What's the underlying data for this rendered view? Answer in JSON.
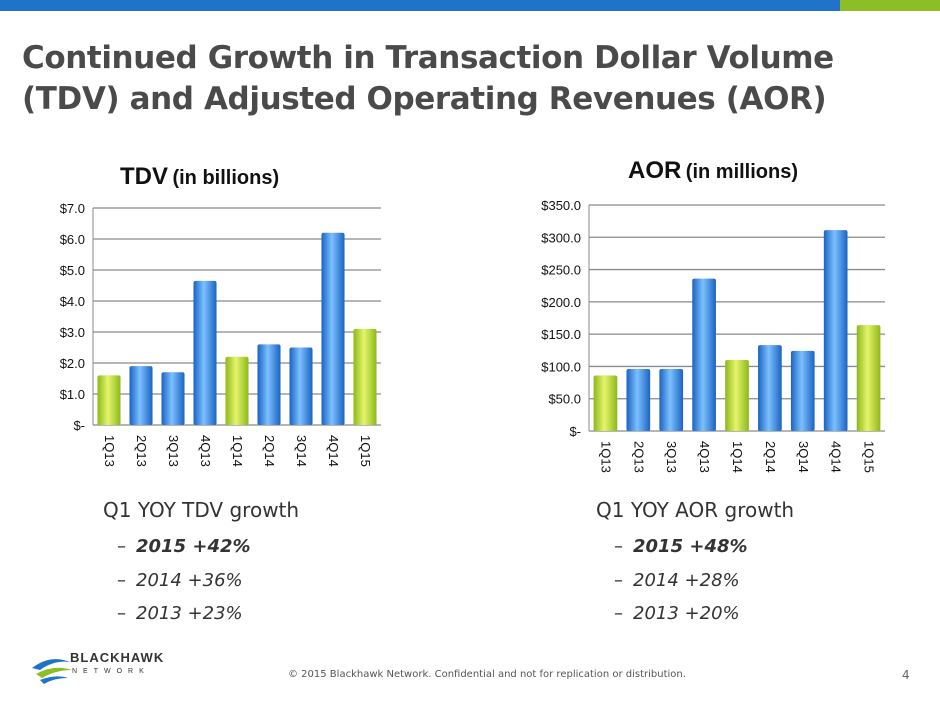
{
  "slide": {
    "title": "Continued Growth in Transaction Dollar Volume (TDV) and Adjusted Operating Revenues (AOR)",
    "footer": "© 2015 Blackhawk Network. Confidential and not for replication or distribution.",
    "page_number": "4"
  },
  "brand": {
    "name": "BLACKHAWK",
    "sub": "NETWORK",
    "accent": "#1f73c8",
    "accent2": "#8cbf26"
  },
  "tdv": {
    "title_main": "TDV",
    "title_sub": "(in billions)"
  },
  "aor": {
    "title_main": "AOR",
    "title_sub": "(in millions)"
  },
  "chart_data": [
    {
      "type": "bar",
      "title": "TDV (in billions)",
      "categories": [
        "1Q13",
        "2Q13",
        "3Q13",
        "4Q13",
        "1Q14",
        "2Q14",
        "3Q14",
        "4Q14",
        "1Q15"
      ],
      "values": [
        1.6,
        1.9,
        1.7,
        4.65,
        2.2,
        2.6,
        2.5,
        6.2,
        3.1
      ],
      "highlight": [
        "1Q13",
        "1Q14",
        "1Q15"
      ],
      "ylim": [
        0,
        7
      ],
      "yticks": [
        0,
        1,
        2,
        3,
        4,
        5,
        6,
        7
      ],
      "ytick_labels": [
        "$-",
        "$1.0",
        "$2.0",
        "$3.0",
        "$4.0",
        "$5.0",
        "$6.0",
        "$7.0"
      ],
      "xlabel": "",
      "ylabel": ""
    },
    {
      "type": "bar",
      "title": "AOR (in millions)",
      "categories": [
        "1Q13",
        "2Q13",
        "3Q13",
        "4Q13",
        "1Q14",
        "2Q14",
        "3Q14",
        "4Q14",
        "1Q15"
      ],
      "values": [
        86,
        96,
        96,
        236,
        110,
        133,
        124,
        311,
        164
      ],
      "highlight": [
        "1Q13",
        "1Q14",
        "1Q15"
      ],
      "ylim": [
        0,
        350
      ],
      "yticks": [
        0,
        50,
        100,
        150,
        200,
        250,
        300,
        350
      ],
      "ytick_labels": [
        "$-",
        "$50.0",
        "$100.0",
        "$150.0",
        "$200.0",
        "$250.0",
        "$300.0",
        "$350.0"
      ],
      "xlabel": "",
      "ylabel": ""
    }
  ],
  "tdv_growth": {
    "heading": "Q1 YOY TDV growth",
    "items": [
      "2015 +42%",
      "2014 +36%",
      "2013 +23%"
    ]
  },
  "aor_growth": {
    "heading": "Q1 YOY AOR growth",
    "items": [
      "2015 +48%",
      "2014 +28%",
      "2013 +20%"
    ]
  }
}
